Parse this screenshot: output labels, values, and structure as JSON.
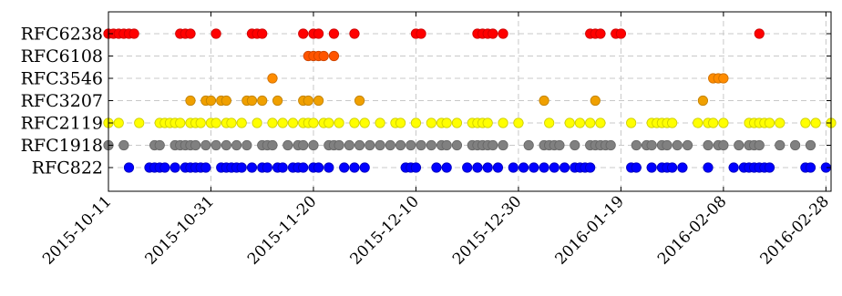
{
  "chart_data": {
    "type": "scatter",
    "title": "",
    "xlabel": "",
    "ylabel": "",
    "x_type": "date",
    "xlim": [
      "2015-10-11",
      "2016-02-29"
    ],
    "x_ticks": [
      "2015-10-11",
      "2015-10-31",
      "2015-11-20",
      "2015-12-10",
      "2015-12-30",
      "2016-01-19",
      "2016-02-08",
      "2016-02-28"
    ],
    "categories": [
      "RFC822",
      "RFC1918",
      "RFC2119",
      "RFC3207",
      "RFC3546",
      "RFC6108",
      "RFC6238"
    ],
    "grid": true,
    "series": [
      {
        "name": "RFC6238",
        "color": "#ff0000",
        "stroke": "#cc0000",
        "dates": [
          "2015-10-11",
          "2015-10-12",
          "2015-10-13",
          "2015-10-14",
          "2015-10-15",
          "2015-10-16",
          "2015-10-25",
          "2015-10-26",
          "2015-10-27",
          "2015-11-01",
          "2015-11-08",
          "2015-11-09",
          "2015-11-10",
          "2015-11-18",
          "2015-11-20",
          "2015-11-21",
          "2015-11-24",
          "2015-11-28",
          "2015-12-10",
          "2015-12-11",
          "2015-12-22",
          "2015-12-23",
          "2015-12-24",
          "2015-12-25",
          "2015-12-27",
          "2016-01-13",
          "2016-01-14",
          "2016-01-15",
          "2016-01-18",
          "2016-01-19",
          "2016-02-15"
        ]
      },
      {
        "name": "RFC6108",
        "color": "#ff5500",
        "stroke": "#cc4400",
        "dates": [
          "2015-11-19",
          "2015-11-20",
          "2015-11-21",
          "2015-11-22",
          "2015-11-24"
        ]
      },
      {
        "name": "RFC3546",
        "color": "#ff8c00",
        "stroke": "#cc6f00",
        "dates": [
          "2015-11-12",
          "2016-02-06",
          "2016-02-07",
          "2016-02-08"
        ]
      },
      {
        "name": "RFC3207",
        "color": "#f0a000",
        "stroke": "#c08000",
        "dates": [
          "2015-10-27",
          "2015-10-30",
          "2015-10-31",
          "2015-11-02",
          "2015-11-03",
          "2015-11-07",
          "2015-11-08",
          "2015-11-10",
          "2015-11-13",
          "2015-11-18",
          "2015-11-19",
          "2015-11-21",
          "2015-11-29",
          "2016-01-04",
          "2016-01-14",
          "2016-02-04"
        ]
      },
      {
        "name": "RFC2119",
        "color": "#ffff00",
        "stroke": "#cccc00",
        "dates": [
          "2015-10-11",
          "2015-10-13",
          "2015-10-17",
          "2015-10-21",
          "2015-10-22",
          "2015-10-23",
          "2015-10-24",
          "2015-10-25",
          "2015-10-27",
          "2015-10-28",
          "2015-10-29",
          "2015-10-31",
          "2015-11-01",
          "2015-11-03",
          "2015-11-04",
          "2015-11-06",
          "2015-11-09",
          "2015-11-12",
          "2015-11-14",
          "2015-11-16",
          "2015-11-18",
          "2015-11-19",
          "2015-11-20",
          "2015-11-22",
          "2015-11-23",
          "2015-11-25",
          "2015-11-28",
          "2015-11-30",
          "2015-12-03",
          "2015-12-06",
          "2015-12-07",
          "2015-12-10",
          "2015-12-13",
          "2015-12-15",
          "2015-12-16",
          "2015-12-18",
          "2015-12-21",
          "2015-12-22",
          "2015-12-23",
          "2015-12-24",
          "2015-12-27",
          "2015-12-30",
          "2016-01-05",
          "2016-01-09",
          "2016-01-11",
          "2016-01-13",
          "2016-01-15",
          "2016-01-21",
          "2016-01-25",
          "2016-01-26",
          "2016-01-27",
          "2016-01-28",
          "2016-01-29",
          "2016-02-03",
          "2016-02-05",
          "2016-02-06",
          "2016-02-08",
          "2016-02-13",
          "2016-02-14",
          "2016-02-15",
          "2016-02-16",
          "2016-02-17",
          "2016-02-19",
          "2016-02-24",
          "2016-02-26",
          "2016-02-29"
        ]
      },
      {
        "name": "RFC1918",
        "color": "#808080",
        "stroke": "#666666",
        "dates": [
          "2015-10-11",
          "2015-10-14",
          "2015-10-20",
          "2015-10-21",
          "2015-10-24",
          "2015-10-25",
          "2015-10-26",
          "2015-10-27",
          "2015-10-28",
          "2015-10-30",
          "2015-11-01",
          "2015-11-03",
          "2015-11-05",
          "2015-11-07",
          "2015-11-10",
          "2015-11-11",
          "2015-11-12",
          "2015-11-15",
          "2015-11-17",
          "2015-11-18",
          "2015-11-20",
          "2015-11-23",
          "2015-11-24",
          "2015-11-25",
          "2015-11-27",
          "2015-11-29",
          "2015-12-01",
          "2015-12-03",
          "2015-12-05",
          "2015-12-07",
          "2015-12-09",
          "2015-12-11",
          "2015-12-13",
          "2015-12-15",
          "2015-12-16",
          "2015-12-18",
          "2015-12-21",
          "2015-12-22",
          "2015-12-23",
          "2015-12-24",
          "2015-12-25",
          "2015-12-27",
          "2016-01-01",
          "2016-01-04",
          "2016-01-05",
          "2016-01-06",
          "2016-01-07",
          "2016-01-10",
          "2016-01-13",
          "2016-01-14",
          "2016-01-15",
          "2016-01-16",
          "2016-01-17",
          "2016-01-22",
          "2016-01-24",
          "2016-01-25",
          "2016-01-27",
          "2016-01-28",
          "2016-01-30",
          "2016-02-01",
          "2016-02-05",
          "2016-02-07",
          "2016-02-08",
          "2016-02-11",
          "2016-02-13",
          "2016-02-14",
          "2016-02-15",
          "2016-02-19",
          "2016-02-22",
          "2016-02-25"
        ]
      },
      {
        "name": "RFC822",
        "color": "#0000ff",
        "stroke": "#0000bb",
        "dates": [
          "2015-10-15",
          "2015-10-19",
          "2015-10-20",
          "2015-10-21",
          "2015-10-22",
          "2015-10-24",
          "2015-10-26",
          "2015-10-27",
          "2015-10-28",
          "2015-10-29",
          "2015-10-30",
          "2015-11-02",
          "2015-11-03",
          "2015-11-04",
          "2015-11-05",
          "2015-11-06",
          "2015-11-08",
          "2015-11-10",
          "2015-11-11",
          "2015-11-13",
          "2015-11-14",
          "2015-11-16",
          "2015-11-17",
          "2015-11-18",
          "2015-11-20",
          "2015-11-21",
          "2015-11-23",
          "2015-11-26",
          "2015-11-28",
          "2015-11-30",
          "2015-12-08",
          "2015-12-09",
          "2015-12-10",
          "2015-12-14",
          "2015-12-16",
          "2015-12-20",
          "2015-12-22",
          "2015-12-24",
          "2015-12-26",
          "2015-12-29",
          "2015-12-31",
          "2016-01-02",
          "2016-01-04",
          "2016-01-06",
          "2016-01-08",
          "2016-01-10",
          "2016-01-11",
          "2016-01-12",
          "2016-01-13",
          "2016-01-21",
          "2016-01-22",
          "2016-01-25",
          "2016-01-27",
          "2016-01-28",
          "2016-01-29",
          "2016-01-31",
          "2016-02-05",
          "2016-02-10",
          "2016-02-12",
          "2016-02-13",
          "2016-02-14",
          "2016-02-15",
          "2016-02-16",
          "2016-02-17",
          "2016-02-24",
          "2016-02-25",
          "2016-02-28"
        ]
      }
    ]
  }
}
